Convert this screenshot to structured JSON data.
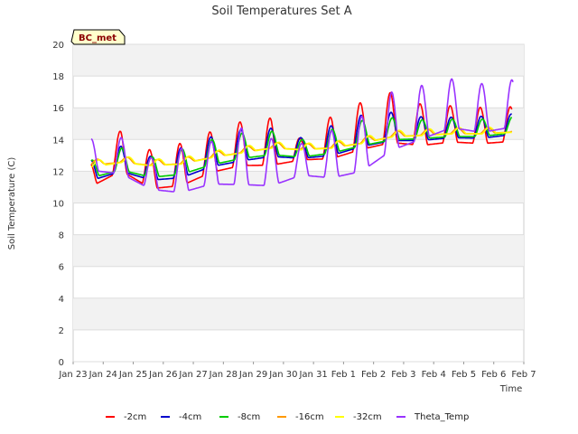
{
  "chart_data": {
    "type": "line",
    "title": "Soil Temperatures Set A",
    "xlabel": "Time",
    "ylabel": "Soil Temperature (C)",
    "badge": "BC_met",
    "ylim": [
      0,
      20
    ],
    "yticks": [
      0,
      2,
      4,
      6,
      8,
      10,
      12,
      14,
      16,
      18,
      20
    ],
    "xlim": [
      0,
      15
    ],
    "xticks": [
      "Jan 23",
      "Jan 24",
      "Jan 25",
      "Jan 26",
      "Jan 27",
      "Jan 28",
      "Jan 29",
      "Jan 30",
      "Jan 31",
      "Feb 1",
      "Feb 2",
      "Feb 3",
      "Feb 4",
      "Feb 5",
      "Feb 6",
      "Feb 7"
    ],
    "grid": true,
    "legend_position": "bottom",
    "series": [
      {
        "name": "-2cm",
        "color": "#ff0000",
        "start": 0.6,
        "end": 14.6,
        "phase": 0.55,
        "amplitude": [
          [
            0.6,
            1.5
          ],
          [
            1.6,
            2.6
          ],
          [
            2.6,
            2.4
          ],
          [
            3.6,
            2.7
          ],
          [
            4.6,
            2.6
          ],
          [
            5.6,
            2.8
          ],
          [
            6.6,
            3.0
          ],
          [
            7.6,
            1.3
          ],
          [
            8.6,
            2.7
          ],
          [
            9.6,
            3.0
          ],
          [
            10.6,
            3.2
          ],
          [
            11.6,
            2.6
          ],
          [
            12.6,
            2.3
          ],
          [
            13.6,
            2.3
          ],
          [
            14.6,
            2.2
          ]
        ],
        "mean": [
          [
            0.6,
            11.6
          ],
          [
            1.6,
            13.0
          ],
          [
            2.6,
            11.8
          ],
          [
            3.6,
            12.1
          ],
          [
            4.6,
            12.9
          ],
          [
            5.6,
            13.4
          ],
          [
            6.6,
            13.5
          ],
          [
            7.6,
            13.2
          ],
          [
            8.6,
            13.8
          ],
          [
            9.6,
            14.5
          ],
          [
            10.6,
            15.0
          ],
          [
            11.6,
            14.6
          ],
          [
            12.6,
            14.7
          ],
          [
            13.6,
            14.6
          ],
          [
            14.6,
            14.7
          ]
        ]
      },
      {
        "name": "-4cm",
        "color": "#0000cc",
        "start": 0.6,
        "end": 14.6,
        "phase": 0.58,
        "amplitude": [
          [
            0.6,
            1.3
          ],
          [
            1.6,
            1.6
          ],
          [
            2.6,
            1.5
          ],
          [
            3.6,
            1.9
          ],
          [
            4.6,
            1.9
          ],
          [
            5.6,
            2.0
          ],
          [
            6.6,
            1.8
          ],
          [
            7.6,
            1.3
          ],
          [
            8.6,
            1.9
          ],
          [
            9.6,
            2.0
          ],
          [
            10.6,
            1.8
          ],
          [
            11.6,
            1.5
          ],
          [
            12.6,
            1.3
          ],
          [
            13.6,
            1.4
          ],
          [
            14.6,
            1.3
          ]
        ],
        "mean": [
          [
            0.6,
            11.9
          ],
          [
            1.6,
            12.6
          ],
          [
            2.6,
            12.0
          ],
          [
            3.6,
            12.3
          ],
          [
            4.6,
            13.0
          ],
          [
            5.6,
            13.4
          ],
          [
            6.6,
            13.6
          ],
          [
            7.6,
            13.3
          ],
          [
            8.6,
            13.7
          ],
          [
            9.6,
            14.3
          ],
          [
            10.6,
            14.6
          ],
          [
            11.6,
            14.5
          ],
          [
            12.6,
            14.6
          ],
          [
            13.6,
            14.6
          ],
          [
            14.6,
            14.8
          ]
        ]
      },
      {
        "name": "-8cm",
        "color": "#00cc00",
        "start": 0.6,
        "end": 14.6,
        "phase": 0.62,
        "amplitude": [
          [
            0.6,
            1.1
          ],
          [
            1.6,
            1.4
          ],
          [
            2.6,
            1.3
          ],
          [
            3.6,
            1.6
          ],
          [
            4.6,
            1.6
          ],
          [
            5.6,
            1.6
          ],
          [
            6.6,
            1.5
          ],
          [
            7.6,
            1.1
          ],
          [
            8.6,
            1.5
          ],
          [
            9.6,
            1.6
          ],
          [
            10.6,
            1.4
          ],
          [
            11.6,
            1.2
          ],
          [
            12.6,
            1.1
          ],
          [
            13.6,
            1.1
          ],
          [
            14.6,
            1.0
          ]
        ],
        "mean": [
          [
            0.6,
            12.0
          ],
          [
            1.6,
            12.6
          ],
          [
            2.6,
            12.1
          ],
          [
            3.6,
            12.4
          ],
          [
            4.6,
            13.0
          ],
          [
            5.6,
            13.4
          ],
          [
            6.6,
            13.6
          ],
          [
            7.6,
            13.3
          ],
          [
            8.6,
            13.7
          ],
          [
            9.6,
            14.2
          ],
          [
            10.6,
            14.5
          ],
          [
            11.6,
            14.5
          ],
          [
            12.6,
            14.6
          ],
          [
            13.6,
            14.6
          ],
          [
            14.6,
            14.8
          ]
        ]
      },
      {
        "name": "-16cm",
        "color": "#ff9900",
        "start": 0.6,
        "end": 14.6,
        "phase": 0.8,
        "amplitude": [
          [
            0.6,
            0.35
          ],
          [
            14.6,
            0.35
          ]
        ],
        "mean": [
          [
            0.6,
            12.5
          ],
          [
            1.6,
            12.7
          ],
          [
            2.6,
            12.5
          ],
          [
            3.6,
            12.6
          ],
          [
            4.6,
            13.0
          ],
          [
            5.6,
            13.3
          ],
          [
            6.6,
            13.6
          ],
          [
            7.6,
            13.5
          ],
          [
            8.6,
            13.6
          ],
          [
            9.6,
            13.9
          ],
          [
            10.6,
            14.3
          ],
          [
            11.6,
            14.4
          ],
          [
            12.6,
            14.5
          ],
          [
            13.6,
            14.5
          ],
          [
            14.6,
            14.6
          ]
        ]
      },
      {
        "name": "-32cm",
        "color": "#ffff00",
        "start": 0.6,
        "end": 14.6,
        "phase": 0.85,
        "amplitude": [
          [
            0.6,
            0.4
          ],
          [
            14.6,
            0.4
          ]
        ],
        "mean": [
          [
            0.6,
            12.4
          ],
          [
            1.6,
            12.7
          ],
          [
            2.6,
            12.5
          ],
          [
            3.6,
            12.6
          ],
          [
            4.6,
            13.0
          ],
          [
            5.6,
            13.3
          ],
          [
            6.6,
            13.6
          ],
          [
            7.6,
            13.5
          ],
          [
            8.6,
            13.6
          ],
          [
            9.6,
            13.9
          ],
          [
            10.6,
            14.3
          ],
          [
            11.6,
            14.4
          ],
          [
            12.6,
            14.5
          ],
          [
            13.6,
            14.5
          ],
          [
            14.6,
            14.6
          ]
        ]
      },
      {
        "name": "Theta_Temp",
        "color": "#9933ff",
        "start": 0.6,
        "end": 14.65,
        "phase": 0.6,
        "amplitude": [
          [
            0.6,
            2.0
          ],
          [
            1.6,
            2.3
          ],
          [
            2.6,
            2.0
          ],
          [
            3.6,
            2.8
          ],
          [
            4.6,
            2.7
          ],
          [
            5.6,
            3.6
          ],
          [
            6.6,
            3.0
          ],
          [
            7.6,
            2.0
          ],
          [
            8.6,
            3.0
          ],
          [
            9.6,
            3.5
          ],
          [
            10.6,
            3.7
          ],
          [
            11.6,
            3.4
          ],
          [
            12.6,
            3.1
          ],
          [
            13.6,
            3.1
          ],
          [
            14.6,
            3.0
          ]
        ],
        "mean": [
          [
            0.6,
            12.8
          ],
          [
            1.6,
            12.7
          ],
          [
            2.6,
            11.6
          ],
          [
            3.6,
            11.7
          ],
          [
            4.6,
            12.2
          ],
          [
            5.6,
            12.5
          ],
          [
            6.6,
            12.2
          ],
          [
            7.6,
            12.5
          ],
          [
            8.6,
            12.7
          ],
          [
            9.6,
            13.3
          ],
          [
            10.6,
            14.7
          ],
          [
            11.6,
            15.3
          ],
          [
            12.6,
            15.9
          ],
          [
            13.6,
            15.6
          ],
          [
            14.6,
            15.9
          ]
        ]
      }
    ]
  }
}
